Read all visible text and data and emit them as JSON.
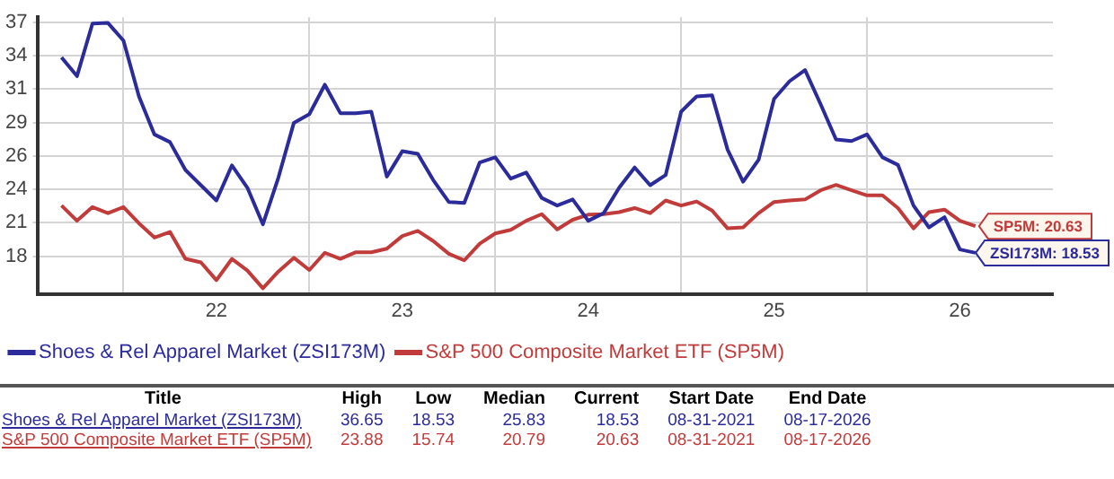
{
  "chart_data": {
    "type": "line",
    "x": [
      "2021-09",
      "2021-10",
      "2021-11",
      "2021-12",
      "2022-01",
      "2022-02",
      "2022-03",
      "2022-04",
      "2022-05",
      "2022-06",
      "2022-07",
      "2022-08",
      "2022-09",
      "2022-10",
      "2022-11",
      "2022-12",
      "2023-01",
      "2023-02",
      "2023-03",
      "2023-04",
      "2023-05",
      "2023-06",
      "2023-07",
      "2023-08",
      "2023-09",
      "2023-10",
      "2023-11",
      "2023-12",
      "2024-01",
      "2024-02",
      "2024-03",
      "2024-04",
      "2024-05",
      "2024-06",
      "2024-07",
      "2024-08",
      "2024-09",
      "2024-10",
      "2024-11",
      "2024-12",
      "2025-01",
      "2025-02",
      "2025-03",
      "2025-04",
      "2025-05",
      "2025-06",
      "2025-07",
      "2025-08",
      "2025-09",
      "2025-10",
      "2025-11",
      "2025-12",
      "2026-01",
      "2026-02",
      "2026-03",
      "2026-04",
      "2026-05",
      "2026-06",
      "2026-07",
      "2026-08"
    ],
    "series": [
      {
        "name": "Shoes & Rel Apparel Market (ZSI173M)",
        "color": "#2b2b9c",
        "values": [
          33.94,
          32.46,
          36.6,
          36.65,
          35.26,
          30.86,
          27.86,
          27.26,
          25.06,
          23.86,
          22.66,
          25.42,
          23.66,
          20.78,
          24.46,
          28.78,
          29.46,
          31.78,
          29.54,
          29.54,
          29.66,
          24.54,
          26.54,
          26.34,
          24.26,
          22.54,
          22.46,
          25.66,
          26.06,
          24.38,
          24.86,
          22.86,
          22.26,
          22.74,
          21.06,
          21.66,
          23.66,
          25.26,
          23.86,
          24.66,
          29.66,
          30.86,
          30.94,
          26.66,
          24.14,
          25.86,
          30.66,
          32.06,
          32.94,
          30.26,
          27.46,
          27.34,
          27.86,
          26.06,
          25.46,
          22.26,
          20.54,
          21.34,
          18.8,
          18.53
        ]
      },
      {
        "name": "S&P 500 Composite Market ETF (SP5M)",
        "color": "#c23b3b",
        "values": [
          22.26,
          21.06,
          22.14,
          21.66,
          22.14,
          20.86,
          19.74,
          20.18,
          18.06,
          17.78,
          16.38,
          18.06,
          17.14,
          15.74,
          17.06,
          18.14,
          17.18,
          18.54,
          18.06,
          18.58,
          18.58,
          18.86,
          19.86,
          20.26,
          19.46,
          18.46,
          17.94,
          19.26,
          20.06,
          20.34,
          21.06,
          21.58,
          20.38,
          21.14,
          21.54,
          21.58,
          21.74,
          22.06,
          21.66,
          22.66,
          22.26,
          22.58,
          21.86,
          20.46,
          20.54,
          21.66,
          22.54,
          22.66,
          22.74,
          23.46,
          23.88,
          23.46,
          23.06,
          23.06,
          22.06,
          20.46,
          21.74,
          21.94,
          21.06,
          20.63
        ]
      }
    ],
    "xlim": [
      "2021-07-16",
      "2027-01-01"
    ],
    "xticks": [
      {
        "value": "2022-01-01",
        "label": null
      },
      {
        "value": "2022-07-01",
        "label": "22"
      },
      {
        "value": "2023-01-01",
        "label": null
      },
      {
        "value": "2023-07-01",
        "label": "23"
      },
      {
        "value": "2024-01-01",
        "label": null
      },
      {
        "value": "2024-07-01",
        "label": "24"
      },
      {
        "value": "2025-01-01",
        "label": null
      },
      {
        "value": "2025-07-01",
        "label": "25"
      },
      {
        "value": "2026-01-01",
        "label": null
      },
      {
        "value": "2026-07-01",
        "label": "26"
      }
    ],
    "ylim": [
      15.3,
      37.1
    ],
    "yticks": [
      {
        "value": 18.27,
        "label": "18"
      },
      {
        "value": 20.9,
        "label": "21"
      },
      {
        "value": 23.53,
        "label": "24"
      },
      {
        "value": 26.17,
        "label": "26"
      },
      {
        "value": 28.8,
        "label": "29"
      },
      {
        "value": 31.43,
        "label": "31"
      },
      {
        "value": 34.07,
        "label": "34"
      },
      {
        "value": 36.7,
        "label": "37"
      }
    ],
    "grid": true,
    "legend": "bottom",
    "marker": "none",
    "line_style": "solid",
    "annotations": [
      {
        "text": "SP5M: 20.63",
        "x": "2026-08",
        "y": 20.63
      },
      {
        "text": "ZSI173M: 18.53",
        "x": "2026-08",
        "y": 18.53
      },
      "Title",
      "High",
      "Low",
      "Median",
      "Current",
      "Start Date",
      "End Date",
      "Shoes & Rel Apparel Market (ZSI173M)",
      "36.65",
      "18.53",
      "25.83",
      "18.53",
      "08-31-2021",
      "08-17-2026",
      "S&P 500 Composite Market ETF (SP5M)",
      "23.88",
      "15.74",
      "20.79",
      "20.63",
      "08-31-2021",
      "08-17-2026"
    ]
  }
}
